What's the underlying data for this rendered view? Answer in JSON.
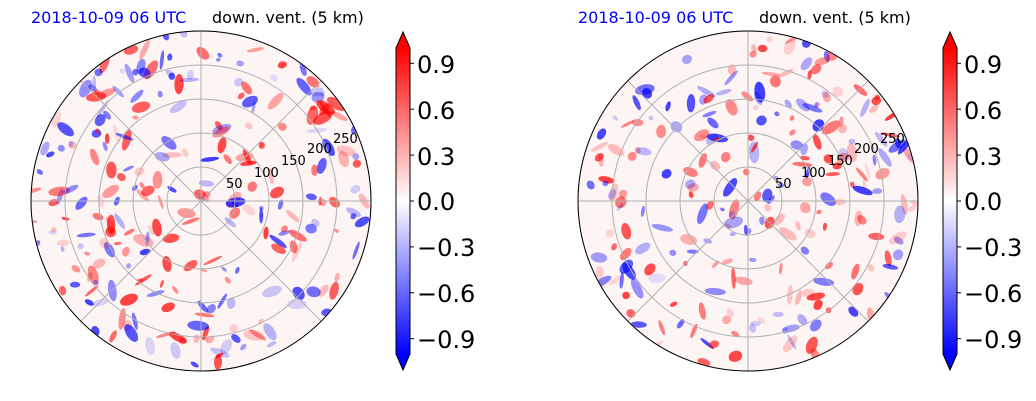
{
  "panels": [
    {
      "title_left": "2018-10-09 06 UTC",
      "title_right": "down. vent. (5 km)",
      "radial_ticks": [
        "50",
        "100",
        "150",
        "200",
        "250"
      ],
      "colorbar_ticks": [
        "0.9",
        "0.6",
        "0.3",
        "0.0",
        "−0.3",
        "−0.6",
        "−0.9"
      ]
    },
    {
      "title_left": "2018-10-09 06 UTC",
      "title_right": "down. vent. (5 km)",
      "radial_ticks": [
        "50",
        "100",
        "150",
        "200",
        "250"
      ],
      "colorbar_ticks": [
        "0.9",
        "0.6",
        "0.3",
        "0.0",
        "−0.3",
        "−0.6",
        "−0.9"
      ]
    }
  ],
  "chart_data": [
    {
      "type": "heatmap",
      "projection": "polar",
      "title": "2018-10-09 06 UTC",
      "subtitle": "down. vent. (5 km)",
      "radial_ticks": [
        50,
        100,
        150,
        200,
        250
      ],
      "grid": true,
      "colorbar": {
        "colormap": "bwr",
        "ticks": [
          0.9,
          0.6,
          0.3,
          0.0,
          -0.3,
          -0.6,
          -0.9
        ],
        "range": [
          -1.0,
          1.0
        ],
        "extend": "both",
        "position": "right"
      },
      "colors": {
        "positive": "#ff0000",
        "negative": "#0000ff",
        "neutral": "#ffffff"
      }
    },
    {
      "type": "heatmap",
      "projection": "polar",
      "title": "2018-10-09 06 UTC",
      "subtitle": "down. vent. (5 km)",
      "radial_ticks": [
        50,
        100,
        150,
        200,
        250
      ],
      "grid": true,
      "colorbar": {
        "colormap": "bwr",
        "ticks": [
          0.9,
          0.6,
          0.3,
          0.0,
          -0.3,
          -0.6,
          -0.9
        ],
        "range": [
          -1.0,
          1.0
        ],
        "extend": "both",
        "position": "right"
      },
      "colors": {
        "positive": "#ff0000",
        "negative": "#0000ff",
        "neutral": "#ffffff"
      }
    }
  ]
}
